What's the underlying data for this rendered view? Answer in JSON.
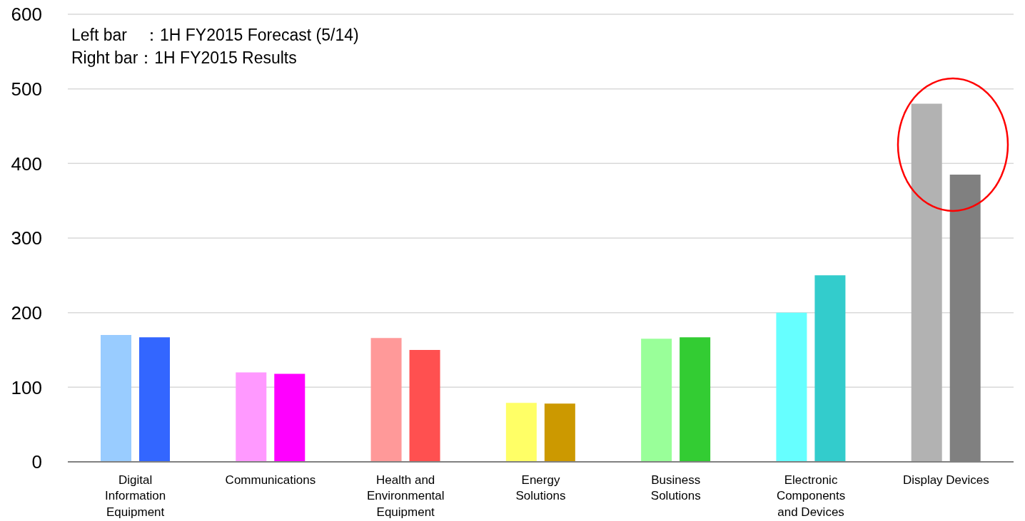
{
  "chart_data": {
    "type": "bar",
    "categories": [
      "Digital\nInformation\nEquipment",
      "Communications",
      "Health and\nEnvironmental\nEquipment",
      "Energy\nSolutions",
      "Business\nSolutions",
      "Electronic\nComponents\nand Devices",
      "Display Devices"
    ],
    "series": [
      {
        "colors": [
          "#99ccff",
          "#ff99ff",
          "#ff9999",
          "#ffff66",
          "#99ff99",
          "#66ffff",
          "#b2b2b2"
        ],
        "values": [
          170,
          120,
          166,
          79,
          165,
          200,
          480
        ]
      },
      {
        "colors": [
          "#3366ff",
          "#ff00ff",
          "#ff5050",
          "#cc9900",
          "#33cc33",
          "#33cccc",
          "#808080"
        ],
        "values": [
          167,
          118,
          150,
          78,
          167,
          250,
          385
        ]
      }
    ],
    "ylim": [
      0,
      600
    ],
    "yticks": [
      0,
      100,
      200,
      300,
      400,
      500,
      600
    ],
    "grid": "y",
    "annotations": [
      "Left bar　：1H FY2015 Forecast (5/14)",
      "Right bar：1H FY2015 Results"
    ]
  }
}
